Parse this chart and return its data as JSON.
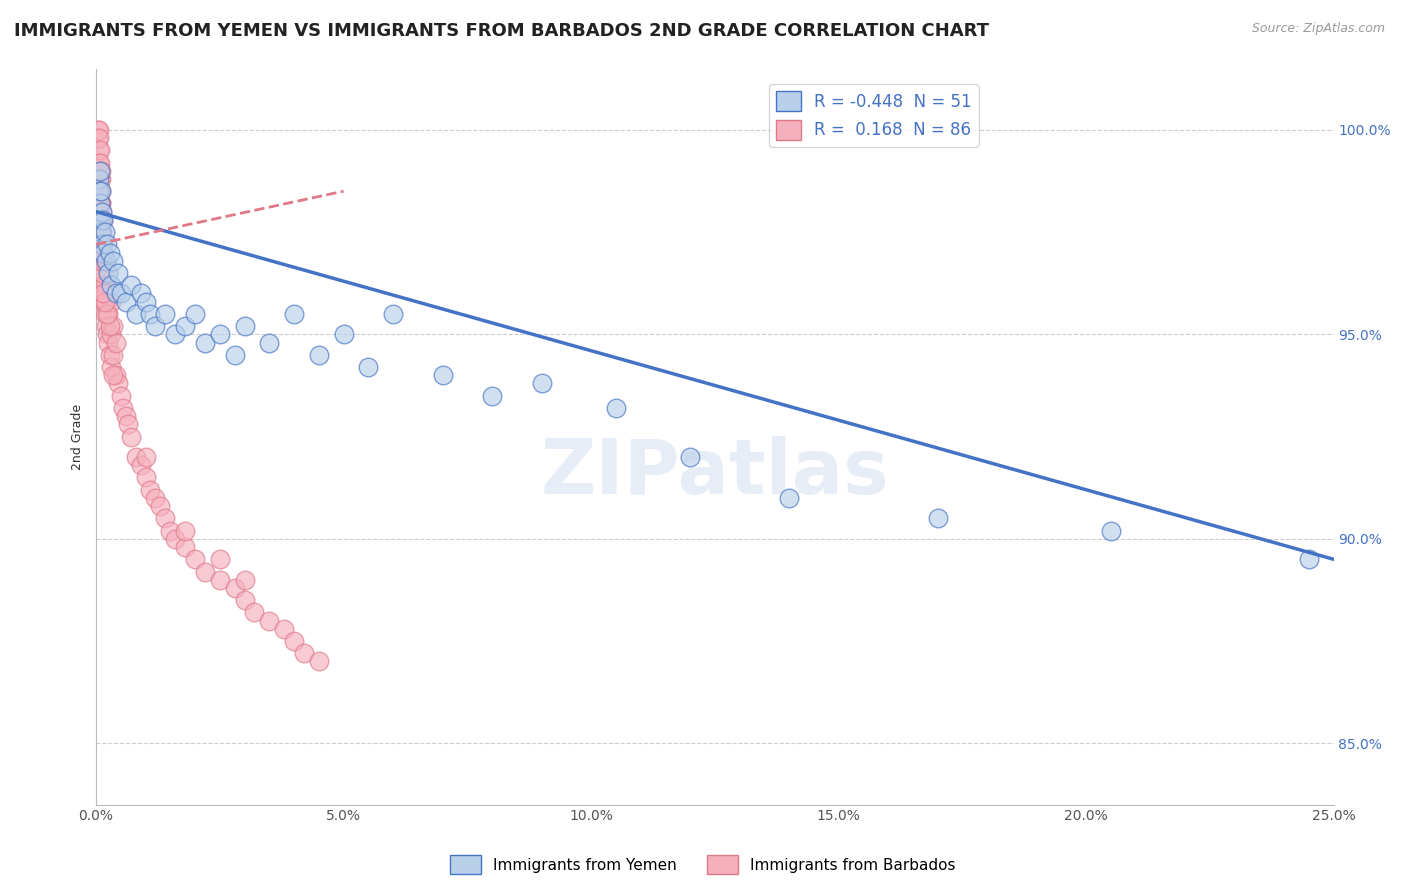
{
  "title": "IMMIGRANTS FROM YEMEN VS IMMIGRANTS FROM BARBADOS 2ND GRADE CORRELATION CHART",
  "source": "Source: ZipAtlas.com",
  "ylabel": "2nd Grade",
  "xlim": [
    0.0,
    25.0
  ],
  "ylim": [
    83.5,
    101.5
  ],
  "x_ticks": [
    0.0,
    5.0,
    10.0,
    15.0,
    20.0,
    25.0
  ],
  "x_tick_labels": [
    "0.0%",
    "5.0%",
    "10.0%",
    "15.0%",
    "20.0%",
    "25.0%"
  ],
  "y_ticks": [
    85.0,
    90.0,
    95.0,
    100.0
  ],
  "y_tick_labels": [
    "85.0%",
    "90.0%",
    "95.0%",
    "100.0%"
  ],
  "legend_r_yemen": "-0.448",
  "legend_n_yemen": "51",
  "legend_r_barbados": "0.168",
  "legend_n_barbados": "86",
  "color_yemen": "#b8d0ea",
  "color_barbados": "#f5b0be",
  "line_color_yemen": "#4472c4",
  "line_color_barbados": "#e07888",
  "watermark": "ZIPatlas",
  "title_fontsize": 13,
  "label_fontsize": 9,
  "tick_fontsize": 10,
  "yemen_x": [
    0.05,
    0.06,
    0.07,
    0.08,
    0.09,
    0.1,
    0.11,
    0.12,
    0.13,
    0.14,
    0.15,
    0.18,
    0.2,
    0.22,
    0.25,
    0.28,
    0.3,
    0.35,
    0.4,
    0.45,
    0.5,
    0.6,
    0.7,
    0.8,
    0.9,
    1.0,
    1.1,
    1.2,
    1.4,
    1.6,
    1.8,
    2.0,
    2.2,
    2.5,
    2.8,
    3.0,
    3.5,
    4.0,
    4.5,
    5.0,
    5.5,
    6.0,
    7.0,
    8.0,
    9.0,
    10.5,
    12.0,
    14.0,
    17.0,
    20.5,
    24.5
  ],
  "yemen_y": [
    98.8,
    98.5,
    99.0,
    98.2,
    97.8,
    98.5,
    97.5,
    98.0,
    97.2,
    97.8,
    97.0,
    97.5,
    96.8,
    97.2,
    96.5,
    97.0,
    96.2,
    96.8,
    96.0,
    96.5,
    96.0,
    95.8,
    96.2,
    95.5,
    96.0,
    95.8,
    95.5,
    95.2,
    95.5,
    95.0,
    95.2,
    95.5,
    94.8,
    95.0,
    94.5,
    95.2,
    94.8,
    95.5,
    94.5,
    95.0,
    94.2,
    95.5,
    94.0,
    93.5,
    93.8,
    93.2,
    92.0,
    91.0,
    90.5,
    90.2,
    89.5
  ],
  "barbados_x": [
    0.03,
    0.04,
    0.05,
    0.05,
    0.06,
    0.06,
    0.07,
    0.07,
    0.08,
    0.08,
    0.09,
    0.09,
    0.1,
    0.1,
    0.1,
    0.11,
    0.11,
    0.12,
    0.12,
    0.13,
    0.13,
    0.14,
    0.14,
    0.15,
    0.15,
    0.15,
    0.16,
    0.16,
    0.17,
    0.17,
    0.18,
    0.18,
    0.2,
    0.2,
    0.2,
    0.22,
    0.22,
    0.25,
    0.25,
    0.28,
    0.3,
    0.3,
    0.3,
    0.35,
    0.35,
    0.4,
    0.4,
    0.45,
    0.5,
    0.55,
    0.6,
    0.65,
    0.7,
    0.8,
    0.9,
    1.0,
    1.0,
    1.1,
    1.2,
    1.3,
    1.4,
    1.5,
    1.6,
    1.8,
    1.8,
    2.0,
    2.2,
    2.5,
    2.5,
    2.8,
    3.0,
    3.0,
    3.2,
    3.5,
    3.8,
    4.0,
    4.2,
    4.5,
    0.35,
    0.28,
    0.22,
    0.18,
    0.15,
    0.12,
    0.1,
    0.09
  ],
  "barbados_y": [
    99.8,
    100.0,
    99.5,
    100.0,
    99.2,
    99.8,
    98.8,
    99.5,
    98.5,
    99.2,
    98.2,
    98.8,
    97.8,
    98.5,
    99.0,
    97.5,
    98.2,
    97.2,
    98.0,
    96.8,
    97.5,
    96.5,
    97.2,
    96.2,
    97.0,
    97.8,
    96.0,
    96.8,
    95.8,
    96.5,
    95.5,
    96.2,
    95.2,
    96.0,
    96.8,
    95.0,
    95.8,
    94.8,
    95.5,
    94.5,
    94.2,
    95.0,
    95.8,
    94.5,
    95.2,
    94.0,
    94.8,
    93.8,
    93.5,
    93.2,
    93.0,
    92.8,
    92.5,
    92.0,
    91.8,
    91.5,
    92.0,
    91.2,
    91.0,
    90.8,
    90.5,
    90.2,
    90.0,
    89.8,
    90.2,
    89.5,
    89.2,
    89.0,
    89.5,
    88.8,
    88.5,
    89.0,
    88.2,
    88.0,
    87.8,
    87.5,
    87.2,
    87.0,
    94.0,
    95.2,
    95.5,
    95.8,
    96.0,
    96.5,
    96.8,
    97.0
  ]
}
